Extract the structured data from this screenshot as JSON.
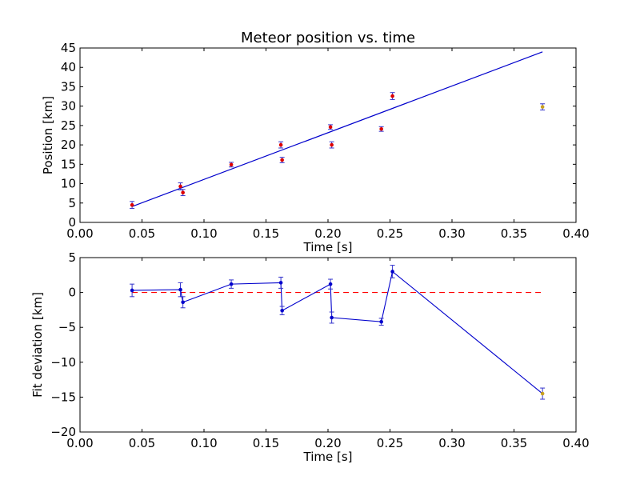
{
  "chart_data": [
    {
      "type": "scatter",
      "title": "Meteor position vs. time",
      "xlabel": "Time [s]",
      "ylabel": "Position [km]",
      "xlim": [
        0.0,
        0.4
      ],
      "ylim": [
        0,
        45
      ],
      "xticks": [
        "0.00",
        "0.05",
        "0.10",
        "0.15",
        "0.20",
        "0.25",
        "0.30",
        "0.35",
        "0.40"
      ],
      "yticks": [
        "0",
        "5",
        "10",
        "15",
        "20",
        "25",
        "30",
        "35",
        "40",
        "45"
      ],
      "grid": false,
      "points": [
        {
          "x": 0.042,
          "y": 4.5,
          "err": 0.9,
          "color": "#dd0000"
        },
        {
          "x": 0.081,
          "y": 9.3,
          "err": 0.9,
          "color": "#dd0000"
        },
        {
          "x": 0.083,
          "y": 7.7,
          "err": 0.8,
          "color": "#dd0000"
        },
        {
          "x": 0.122,
          "y": 14.9,
          "err": 0.6,
          "color": "#dd0000"
        },
        {
          "x": 0.162,
          "y": 20.0,
          "err": 0.8,
          "color": "#dd0000"
        },
        {
          "x": 0.163,
          "y": 16.1,
          "err": 0.7,
          "color": "#dd0000"
        },
        {
          "x": 0.202,
          "y": 24.6,
          "err": 0.6,
          "color": "#dd0000"
        },
        {
          "x": 0.203,
          "y": 20.0,
          "err": 0.8,
          "color": "#dd0000"
        },
        {
          "x": 0.243,
          "y": 24.1,
          "err": 0.6,
          "color": "#dd0000"
        },
        {
          "x": 0.252,
          "y": 32.6,
          "err": 0.9,
          "color": "#dd0000"
        },
        {
          "x": 0.373,
          "y": 29.8,
          "err": 0.8,
          "color": "#c8a020"
        }
      ],
      "fit_line": {
        "x": [
          0.042,
          0.373
        ],
        "y": [
          4.1,
          44.0
        ],
        "color": "#0000cc"
      }
    },
    {
      "type": "line",
      "title": "",
      "xlabel": "Time [s]",
      "ylabel": "Fit deviation [km]",
      "xlim": [
        0.0,
        0.4
      ],
      "ylim": [
        -20,
        5
      ],
      "xticks": [
        "0.00",
        "0.05",
        "0.10",
        "0.15",
        "0.20",
        "0.25",
        "0.30",
        "0.35",
        "0.40"
      ],
      "yticks": [
        "5",
        "0",
        "−5",
        "−10",
        "−15",
        "−20"
      ],
      "grid": false,
      "series": [
        {
          "x": [
            0.042,
            0.081,
            0.083,
            0.122,
            0.162,
            0.163,
            0.202,
            0.203,
            0.243,
            0.252,
            0.373
          ],
          "y": [
            0.3,
            0.4,
            -1.4,
            1.2,
            1.4,
            -2.6,
            1.2,
            -3.6,
            -4.2,
            3.0,
            -14.5
          ],
          "err": [
            0.9,
            1.0,
            0.8,
            0.6,
            0.8,
            0.6,
            0.7,
            0.8,
            0.5,
            0.9,
            0.8
          ],
          "color": "#0000cc"
        }
      ],
      "reference_line": {
        "y": 0,
        "style": "dashed",
        "color": "#ff0000"
      }
    }
  ]
}
